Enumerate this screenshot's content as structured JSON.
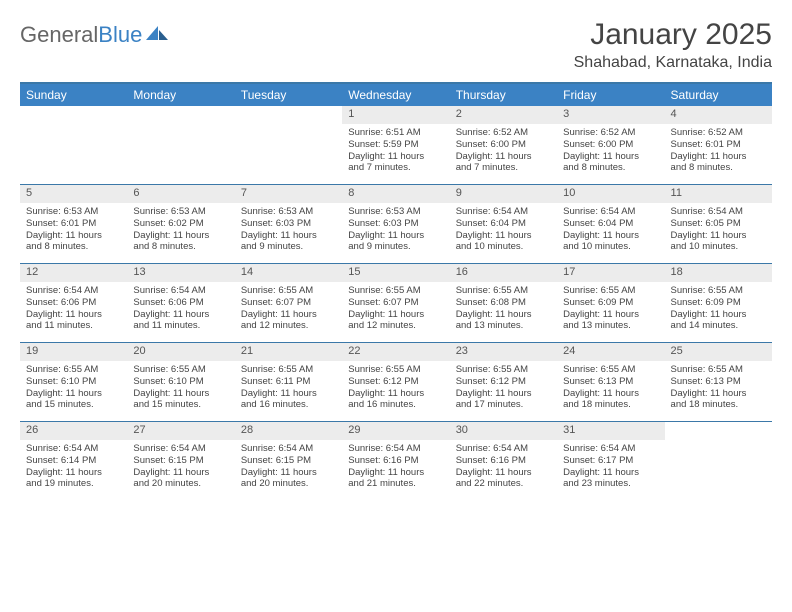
{
  "brand": {
    "part1": "General",
    "part2": "Blue"
  },
  "title": "January 2025",
  "location": "Shahabad, Karnataka, India",
  "colors": {
    "header_bg": "#3b82c4",
    "border": "#3b78a8",
    "daynum_bg": "#ececec",
    "text": "#444444",
    "logo_gray": "#666666",
    "logo_blue": "#3b82c4"
  },
  "typography": {
    "title_fontsize": 30,
    "location_fontsize": 16,
    "dayhead_fontsize": 12,
    "cell_fontsize": 9.5
  },
  "day_headers": [
    "Sunday",
    "Monday",
    "Tuesday",
    "Wednesday",
    "Thursday",
    "Friday",
    "Saturday"
  ],
  "weeks": [
    [
      {
        "day": "",
        "lines": []
      },
      {
        "day": "",
        "lines": []
      },
      {
        "day": "",
        "lines": []
      },
      {
        "day": "1",
        "lines": [
          "Sunrise: 6:51 AM",
          "Sunset: 5:59 PM",
          "Daylight: 11 hours",
          "and 7 minutes."
        ]
      },
      {
        "day": "2",
        "lines": [
          "Sunrise: 6:52 AM",
          "Sunset: 6:00 PM",
          "Daylight: 11 hours",
          "and 7 minutes."
        ]
      },
      {
        "day": "3",
        "lines": [
          "Sunrise: 6:52 AM",
          "Sunset: 6:00 PM",
          "Daylight: 11 hours",
          "and 8 minutes."
        ]
      },
      {
        "day": "4",
        "lines": [
          "Sunrise: 6:52 AM",
          "Sunset: 6:01 PM",
          "Daylight: 11 hours",
          "and 8 minutes."
        ]
      }
    ],
    [
      {
        "day": "5",
        "lines": [
          "Sunrise: 6:53 AM",
          "Sunset: 6:01 PM",
          "Daylight: 11 hours",
          "and 8 minutes."
        ]
      },
      {
        "day": "6",
        "lines": [
          "Sunrise: 6:53 AM",
          "Sunset: 6:02 PM",
          "Daylight: 11 hours",
          "and 8 minutes."
        ]
      },
      {
        "day": "7",
        "lines": [
          "Sunrise: 6:53 AM",
          "Sunset: 6:03 PM",
          "Daylight: 11 hours",
          "and 9 minutes."
        ]
      },
      {
        "day": "8",
        "lines": [
          "Sunrise: 6:53 AM",
          "Sunset: 6:03 PM",
          "Daylight: 11 hours",
          "and 9 minutes."
        ]
      },
      {
        "day": "9",
        "lines": [
          "Sunrise: 6:54 AM",
          "Sunset: 6:04 PM",
          "Daylight: 11 hours",
          "and 10 minutes."
        ]
      },
      {
        "day": "10",
        "lines": [
          "Sunrise: 6:54 AM",
          "Sunset: 6:04 PM",
          "Daylight: 11 hours",
          "and 10 minutes."
        ]
      },
      {
        "day": "11",
        "lines": [
          "Sunrise: 6:54 AM",
          "Sunset: 6:05 PM",
          "Daylight: 11 hours",
          "and 10 minutes."
        ]
      }
    ],
    [
      {
        "day": "12",
        "lines": [
          "Sunrise: 6:54 AM",
          "Sunset: 6:06 PM",
          "Daylight: 11 hours",
          "and 11 minutes."
        ]
      },
      {
        "day": "13",
        "lines": [
          "Sunrise: 6:54 AM",
          "Sunset: 6:06 PM",
          "Daylight: 11 hours",
          "and 11 minutes."
        ]
      },
      {
        "day": "14",
        "lines": [
          "Sunrise: 6:55 AM",
          "Sunset: 6:07 PM",
          "Daylight: 11 hours",
          "and 12 minutes."
        ]
      },
      {
        "day": "15",
        "lines": [
          "Sunrise: 6:55 AM",
          "Sunset: 6:07 PM",
          "Daylight: 11 hours",
          "and 12 minutes."
        ]
      },
      {
        "day": "16",
        "lines": [
          "Sunrise: 6:55 AM",
          "Sunset: 6:08 PM",
          "Daylight: 11 hours",
          "and 13 minutes."
        ]
      },
      {
        "day": "17",
        "lines": [
          "Sunrise: 6:55 AM",
          "Sunset: 6:09 PM",
          "Daylight: 11 hours",
          "and 13 minutes."
        ]
      },
      {
        "day": "18",
        "lines": [
          "Sunrise: 6:55 AM",
          "Sunset: 6:09 PM",
          "Daylight: 11 hours",
          "and 14 minutes."
        ]
      }
    ],
    [
      {
        "day": "19",
        "lines": [
          "Sunrise: 6:55 AM",
          "Sunset: 6:10 PM",
          "Daylight: 11 hours",
          "and 15 minutes."
        ]
      },
      {
        "day": "20",
        "lines": [
          "Sunrise: 6:55 AM",
          "Sunset: 6:10 PM",
          "Daylight: 11 hours",
          "and 15 minutes."
        ]
      },
      {
        "day": "21",
        "lines": [
          "Sunrise: 6:55 AM",
          "Sunset: 6:11 PM",
          "Daylight: 11 hours",
          "and 16 minutes."
        ]
      },
      {
        "day": "22",
        "lines": [
          "Sunrise: 6:55 AM",
          "Sunset: 6:12 PM",
          "Daylight: 11 hours",
          "and 16 minutes."
        ]
      },
      {
        "day": "23",
        "lines": [
          "Sunrise: 6:55 AM",
          "Sunset: 6:12 PM",
          "Daylight: 11 hours",
          "and 17 minutes."
        ]
      },
      {
        "day": "24",
        "lines": [
          "Sunrise: 6:55 AM",
          "Sunset: 6:13 PM",
          "Daylight: 11 hours",
          "and 18 minutes."
        ]
      },
      {
        "day": "25",
        "lines": [
          "Sunrise: 6:55 AM",
          "Sunset: 6:13 PM",
          "Daylight: 11 hours",
          "and 18 minutes."
        ]
      }
    ],
    [
      {
        "day": "26",
        "lines": [
          "Sunrise: 6:54 AM",
          "Sunset: 6:14 PM",
          "Daylight: 11 hours",
          "and 19 minutes."
        ]
      },
      {
        "day": "27",
        "lines": [
          "Sunrise: 6:54 AM",
          "Sunset: 6:15 PM",
          "Daylight: 11 hours",
          "and 20 minutes."
        ]
      },
      {
        "day": "28",
        "lines": [
          "Sunrise: 6:54 AM",
          "Sunset: 6:15 PM",
          "Daylight: 11 hours",
          "and 20 minutes."
        ]
      },
      {
        "day": "29",
        "lines": [
          "Sunrise: 6:54 AM",
          "Sunset: 6:16 PM",
          "Daylight: 11 hours",
          "and 21 minutes."
        ]
      },
      {
        "day": "30",
        "lines": [
          "Sunrise: 6:54 AM",
          "Sunset: 6:16 PM",
          "Daylight: 11 hours",
          "and 22 minutes."
        ]
      },
      {
        "day": "31",
        "lines": [
          "Sunrise: 6:54 AM",
          "Sunset: 6:17 PM",
          "Daylight: 11 hours",
          "and 23 minutes."
        ]
      },
      {
        "day": "",
        "lines": []
      }
    ]
  ]
}
